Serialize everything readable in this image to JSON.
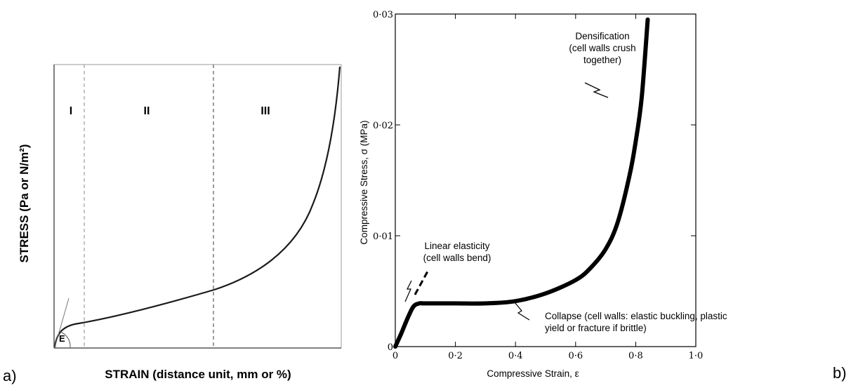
{
  "panel_labels": {
    "a": "a)",
    "b": "b)"
  },
  "chart_data": [
    {
      "type": "line",
      "panel": "a",
      "xlabel": "STRAIN (distance unit, mm or %)",
      "ylabel": "STRESS (Pa or N/m²)",
      "regions": [
        "I",
        "II",
        "III"
      ],
      "annotations": [
        "E"
      ],
      "grid": false
    },
    {
      "type": "line",
      "panel": "b",
      "xlabel": "Compressive Strain, ε",
      "ylabel": "Compressive Stress, σ (MPa)",
      "xlim": [
        0,
        1.0
      ],
      "ylim": [
        0,
        0.03
      ],
      "x_tick_labels": [
        "0",
        "0·2",
        "0·4",
        "0·6",
        "0·8",
        "1·0"
      ],
      "y_tick_labels": [
        "0",
        "0·01",
        "0·02",
        "0·03"
      ],
      "x": [
        0,
        0.02,
        0.04,
        0.06,
        0.08,
        0.1,
        0.2,
        0.3,
        0.4,
        0.5,
        0.6,
        0.65,
        0.7,
        0.74,
        0.78,
        0.8,
        0.82,
        0.84
      ],
      "y": [
        0,
        0.0012,
        0.0025,
        0.0036,
        0.0039,
        0.0039,
        0.0039,
        0.0039,
        0.0041,
        0.0048,
        0.006,
        0.0071,
        0.0088,
        0.0112,
        0.0155,
        0.0185,
        0.0225,
        0.0295
      ],
      "annotations": [
        {
          "text": "Densification\n(cell walls crush\ntogether)"
        },
        {
          "text": "Linear elasticity\n(cell walls bend)"
        },
        {
          "text": "Collapse (cell walls: elastic buckling, plastic\nyield or fracture if brittle)"
        }
      ],
      "grid": false
    }
  ]
}
